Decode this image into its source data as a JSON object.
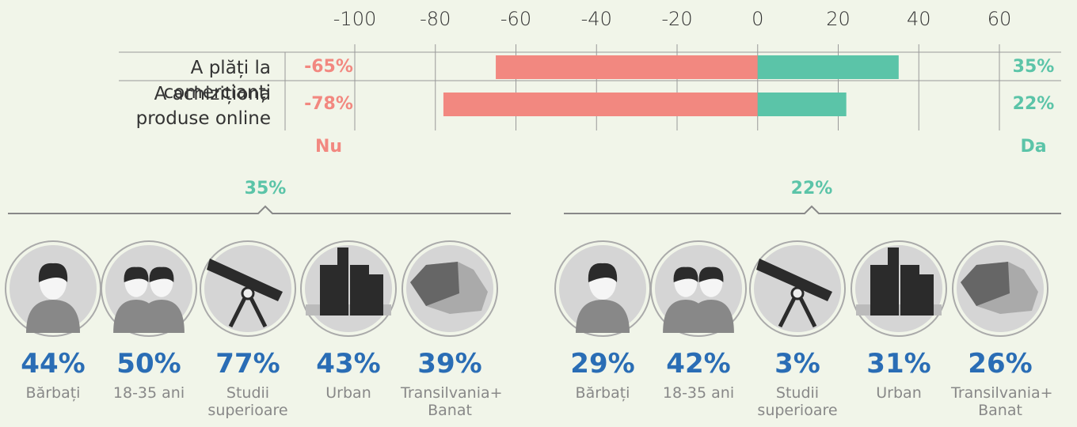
{
  "chart_data": {
    "type": "bar",
    "orientation": "horizontal",
    "categories": [
      "A plăți la comercianți",
      "A achiziționa produse online"
    ],
    "series": [
      {
        "name": "Nu",
        "color": "#f28880",
        "values": [
          -65,
          -78
        ],
        "value_labels": [
          "-65%",
          "-78%"
        ]
      },
      {
        "name": "Da",
        "color": "#5bc4a8",
        "values": [
          35,
          22
        ],
        "value_labels": [
          "35%",
          "22%"
        ]
      }
    ],
    "xlim": [
      -100,
      60
    ],
    "xticks": [
      -100,
      -80,
      -60,
      -40,
      -20,
      0,
      20,
      40,
      60
    ],
    "grid": true
  },
  "profiles": [
    {
      "header": "35%",
      "items": [
        {
          "value": "44%",
          "label": "Bărbați"
        },
        {
          "value": "50%",
          "label": "18-35 ani"
        },
        {
          "value": "77%",
          "label": "Studii superioare"
        },
        {
          "value": "43%",
          "label": "Urban"
        },
        {
          "value": "39%",
          "label": "Transilvania+ Banat"
        }
      ]
    },
    {
      "header": "22%",
      "items": [
        {
          "value": "29%",
          "label": "Bărbați"
        },
        {
          "value": "42%",
          "label": "18-35 ani"
        },
        {
          "value": "3%",
          "label": "Studii superioare"
        },
        {
          "value": "31%",
          "label": "Urban"
        },
        {
          "value": "26%",
          "label": "Transilvania+ Banat"
        }
      ]
    }
  ]
}
